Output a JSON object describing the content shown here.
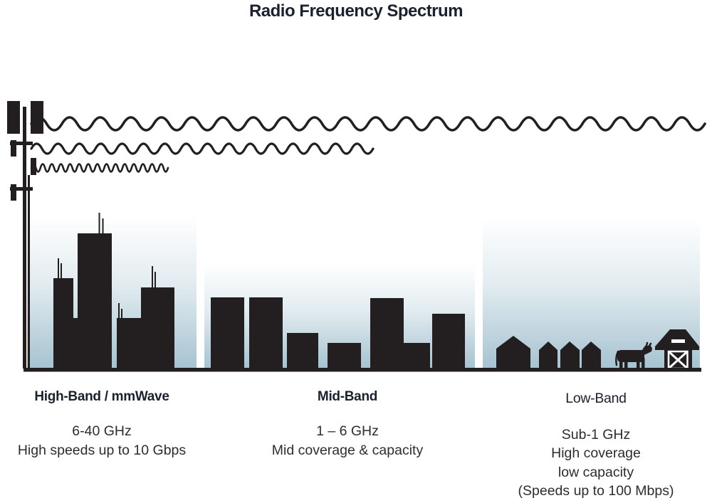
{
  "title": "Radio Frequency Spectrum",
  "bands": [
    {
      "name": "High-Band / mmWave",
      "details": [
        "6-40 GHz",
        "High speeds up to 10 Gbps"
      ]
    },
    {
      "name": "Mid-Band",
      "details": [
        "1 – 6 GHz",
        "Mid coverage & capacity"
      ]
    },
    {
      "name": "Low-Band",
      "details": [
        "Sub-1 GHz",
        "High coverage",
        "low capacity",
        "(Speeds up to 100 Mbps)"
      ]
    }
  ],
  "illustrations": {
    "tower": "cell-tower-icon",
    "waves": [
      "long-wavelength-wave",
      "medium-wavelength-wave",
      "short-wavelength-wave"
    ],
    "high_band_scene": "skyscraper-skyline",
    "mid_band_scene": "mid-rise-buildings",
    "low_band_scene": "rural-houses-cow-barn"
  },
  "colors": {
    "ink": "#231f20",
    "title_ink": "#1b212d",
    "text_ink": "#2e2c2f",
    "sky_top": "#ffffff",
    "sky_mid": "#e2ecf0",
    "sky_bottom": "#a7c3d1"
  }
}
